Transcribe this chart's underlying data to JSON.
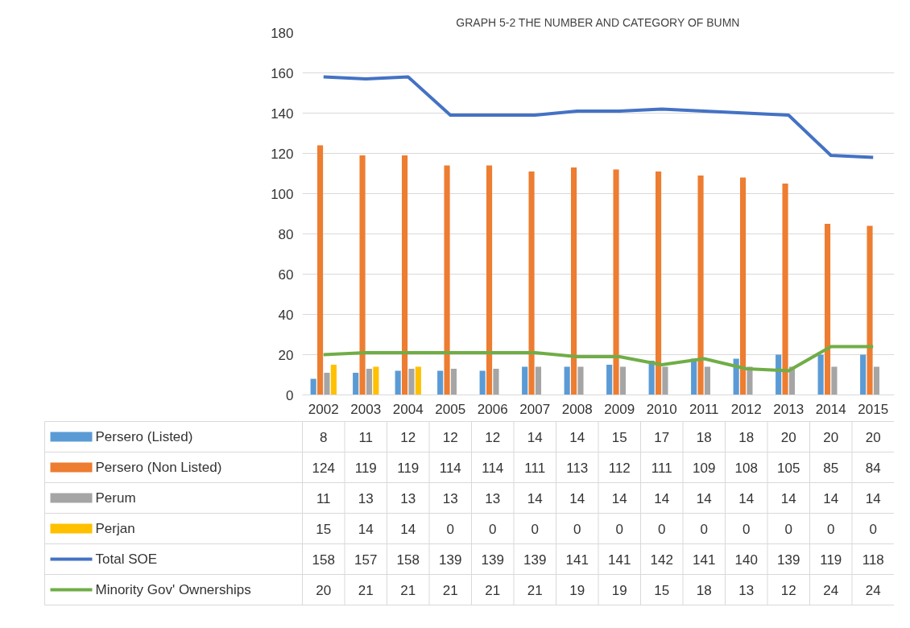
{
  "chart_data": {
    "type": "bar",
    "title": "GRAPH 5-2 THE NUMBER AND CATEGORY OF BUMN",
    "categories": [
      "2002",
      "2003",
      "2004",
      "2005",
      "2006",
      "2007",
      "2008",
      "2009",
      "2010",
      "2011",
      "2012",
      "2013",
      "2014",
      "2015"
    ],
    "series": [
      {
        "name": "Persero (Listed)",
        "color": "#5b9bd5",
        "values": [
          8,
          11,
          12,
          12,
          12,
          14,
          14,
          15,
          17,
          18,
          18,
          20,
          20,
          20
        ]
      },
      {
        "name": "Persero (Non Listed)",
        "color": "#ed7d31",
        "values": [
          124,
          119,
          119,
          114,
          114,
          111,
          113,
          112,
          111,
          109,
          108,
          105,
          85,
          84
        ]
      },
      {
        "name": "Perum",
        "color": "#a5a5a5",
        "values": [
          11,
          13,
          13,
          13,
          13,
          14,
          14,
          14,
          14,
          14,
          14,
          14,
          14,
          14
        ]
      },
      {
        "name": "Perjan",
        "color": "#ffc000",
        "values": [
          15,
          14,
          14,
          0,
          0,
          0,
          0,
          0,
          0,
          0,
          0,
          0,
          0,
          0
        ]
      },
      {
        "name": "Total SOE",
        "type": "line",
        "color": "#4472c4",
        "values": [
          158,
          157,
          158,
          139,
          139,
          139,
          141,
          141,
          142,
          141,
          140,
          139,
          119,
          118
        ]
      },
      {
        "name": "Minority Gov' Ownerships",
        "type": "line",
        "color": "#70ad47",
        "values": [
          20,
          21,
          21,
          21,
          21,
          21,
          19,
          19,
          15,
          18,
          13,
          12,
          24,
          24
        ]
      }
    ],
    "ylim": [
      0,
      180
    ],
    "yticks": [
      0,
      20,
      40,
      60,
      80,
      100,
      120,
      140,
      160,
      180
    ],
    "grid": "y",
    "legend": "bottom",
    "data_labels": true
  }
}
